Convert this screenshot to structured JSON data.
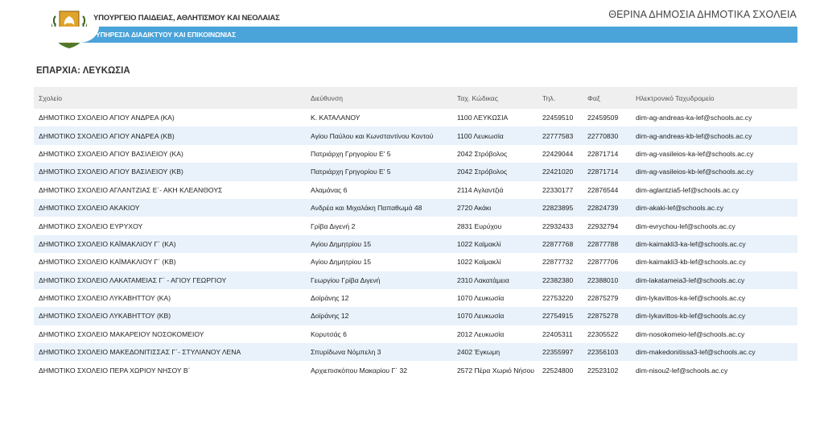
{
  "header": {
    "ministry": "ΥΠΟΥΡΓΕΙΟ ΠΑΙΔΕΙΑΣ, ΑΘΛΗΤΙΣΜΟΥ ΚΑΙ ΝΕΟΛΑΙΑΣ",
    "service": "ΥΠΗΡΕΣΙΑ ΔΙΑΔΙΚΤΥΟΥ ΚΑΙ ΕΠΙΚΟΙΝΩΝΙΑΣ",
    "doc_title": "ΘΕΡΙΝΑ ΔΗΜΟΣΙΑ ΔΗΜΟΤΙΚΑ ΣΧΟΛΕΙΑ",
    "emblem_icon": "cyprus-coat-of-arms-icon",
    "bar_color": "#4aa3d9"
  },
  "district": "ΕΠΑΡΧΙΑ: ΛΕΥΚΩΣΙΑ",
  "table": {
    "columns": [
      "Σχολείο",
      "Διεύθυνση",
      "Ταχ. Κώδικας",
      "Τηλ.",
      "Φαξ",
      "Ηλεκτρονικό Ταχυδρομείο"
    ],
    "rows": [
      [
        "ΔΗΜΟΤΙΚΟ ΣΧΟΛΕΙΟ ΑΓΙΟΥ ΑΝΔΡΕΑ (ΚΑ)",
        "Κ. ΚΑΤΑΛΑΝΟΥ",
        "1100 ΛΕΥΚΩΣΙΑ",
        "22459510",
        "22459509",
        "dim-ag-andreas-ka-lef@schools.ac.cy"
      ],
      [
        "ΔΗΜΟΤΙΚΟ ΣΧΟΛΕΙΟ ΑΓΙΟΥ ΑΝΔΡΕΑ (ΚΒ)",
        "Αγίου Παύλου και Κωνσταντίνου Κοντού",
        "1100 Λευκωσία",
        "22777583",
        "22770830",
        "dim-ag-andreas-kb-lef@schools.ac.cy"
      ],
      [
        "ΔΗΜΟΤΙΚΟ ΣΧΟΛΕΙΟ ΑΓΙΟΥ ΒΑΣΙΛΕΙΟΥ (ΚΑ)",
        "Πατριάρχη Γρηγορίου Ε' 5",
        "2042 Στρόβολος",
        "22429044",
        "22871714",
        "dim-ag-vasileios-ka-lef@schools.ac.cy"
      ],
      [
        "ΔΗΜΟΤΙΚΟ ΣΧΟΛΕΙΟ ΑΓΙΟΥ ΒΑΣΙΛΕΙΟΥ (ΚΒ)",
        "Πατριάρχη Γρηγορίου Ε' 5",
        "2042 Στρόβολος",
        "22421020",
        "22871714",
        "dim-ag-vasileios-kb-lef@schools.ac.cy"
      ],
      [
        "ΔΗΜΟΤΙΚΟ ΣΧΟΛΕΙΟ ΑΓΛΑΝΤΖΙΑΣ Ε΄- ΑΚΗ ΚΛΕΑΝΘΟΥΣ",
        "Αλαμάνας 6",
        "2114 Αγλαντζιά",
        "22330177",
        "22876544",
        "dim-aglantzia5-lef@schools.ac.cy"
      ],
      [
        "ΔΗΜΟΤΙΚΟ ΣΧΟΛΕΙΟ ΑΚΑΚΙΟΥ",
        "Ανδρέα και Μιχαλάκη Παπαθωμά 48",
        "2720 Ακάκι",
        "22823895",
        "22824739",
        "dim-akaki-lef@schools.ac.cy"
      ],
      [
        "ΔΗΜΟΤΙΚΟ ΣΧΟΛΕΙΟ ΕΥΡΥΧΟΥ",
        "Γρίβα Διγενή 2",
        "2831 Ευρύχου",
        "22932433",
        "22932794",
        "dim-evrychou-lef@schools.ac.cy"
      ],
      [
        "ΔΗΜΟΤΙΚΟ ΣΧΟΛΕΙΟ ΚΑΪΜΑΚΛΙΟΥ Γ΄ (ΚΑ)",
        "Αγίου Δημητρίου 15",
        "1022 Καϊμακλί",
        "22877768",
        "22877788",
        "dim-kaimakli3-ka-lef@schools.ac.cy"
      ],
      [
        "ΔΗΜΟΤΙΚΟ ΣΧΟΛΕΙΟ ΚΑΪΜΑΚΛΙΟΥ Γ΄ (ΚΒ)",
        "Αγίου Δημητρίου 15",
        "1022 Καϊμακλί",
        "22877732",
        "22877706",
        "dim-kaimakli3-kb-lef@schools.ac.cy"
      ],
      [
        "ΔΗΜΟΤΙΚΟ ΣΧΟΛΕΙΟ ΛΑΚΑΤΑΜΕΙΑΣ Γ΄ - ΑΓΙΟΥ ΓΕΩΡΓΙΟΥ",
        "Γεωργίου Γρίβα Διγενή",
        "2310 Λακατάμεια",
        "22382380",
        "22388010",
        "dim-lakatameia3-lef@schools.ac.cy"
      ],
      [
        "ΔΗΜΟΤΙΚΟ ΣΧΟΛΕΙΟ ΛΥΚΑΒΗΤΤΟΥ (ΚΑ)",
        "Δοϊράνης 12",
        "1070 Λευκωσία",
        "22753220",
        "22875279",
        "dim-lykavittos-ka-lef@schools.ac.cy"
      ],
      [
        "ΔΗΜΟΤΙΚΟ ΣΧΟΛΕΙΟ ΛΥΚΑΒΗΤΤΟΥ (ΚΒ)",
        "Δοϊράνης 12",
        "1070 Λευκωσία",
        "22754915",
        "22875278",
        "dim-lykavittos-kb-lef@schools.ac.cy"
      ],
      [
        "ΔΗΜΟΤΙΚΟ ΣΧΟΛΕΙΟ ΜΑΚΑΡΕΙΟΥ ΝΟΣΟΚΟΜΕΙΟΥ",
        "Κορυτσάς 6",
        "2012 Λευκωσία",
        "22405311",
        "22305522",
        "dim-nosokomeio-lef@schools.ac.cy"
      ],
      [
        "ΔΗΜΟΤΙΚΟ ΣΧΟΛΕΙΟ ΜΑΚΕΔΟΝΙΤΙΣΣΑΣ Γ΄- ΣΤΥΛΙΑΝΟΥ ΛΕΝΑ",
        "Σπυρίδωνα Νόμπελη 3",
        "2402 Έγκωμη",
        "22355997",
        "22356103",
        "dim-makedonitissa3-lef@schools.ac.cy"
      ],
      [
        "ΔΗΜΟΤΙΚΟ ΣΧΟΛΕΙΟ ΠΕΡΑ ΧΩΡΙΟΥ ΝΗΣΟΥ Β΄",
        "Αρχιεπισκόπου Μακαρίου Γ΄ 32",
        "2572 Πέρα Χωριό Νήσου",
        "22524800",
        "22523102",
        "dim-nisou2-lef@schools.ac.cy"
      ]
    ]
  }
}
